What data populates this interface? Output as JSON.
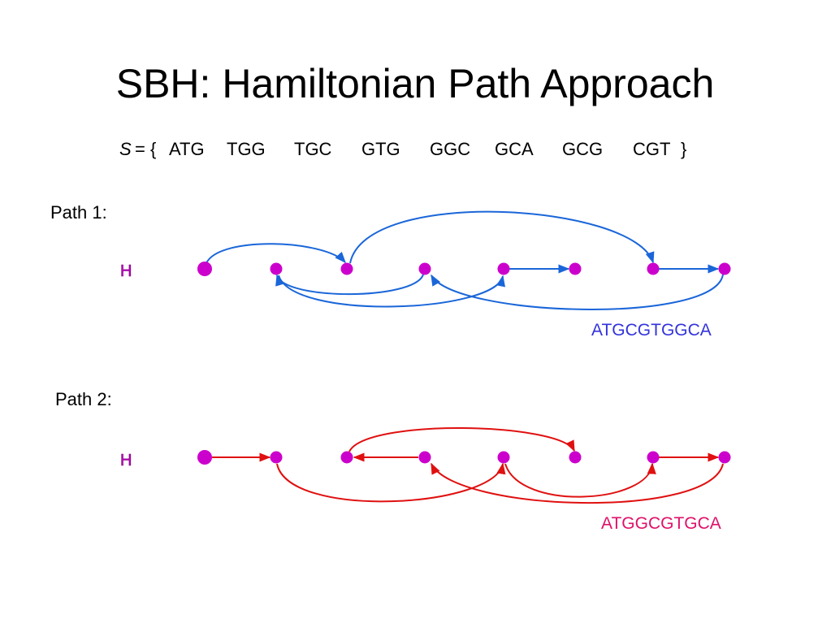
{
  "title": "SBH: Hamiltonian Path Approach",
  "set": {
    "symbol": "S",
    "open": "= {",
    "items": [
      "ATG",
      "TGG",
      "TGC",
      "GTG",
      "GGC",
      "GCA",
      "GCG",
      "CGT"
    ],
    "close": "}"
  },
  "paths": [
    {
      "label": "Path 1:",
      "start": "H",
      "result": "ATGCGTGGCA"
    },
    {
      "label": "Path 2:",
      "start": "H",
      "result": "ATGGCGTGCA"
    }
  ]
}
